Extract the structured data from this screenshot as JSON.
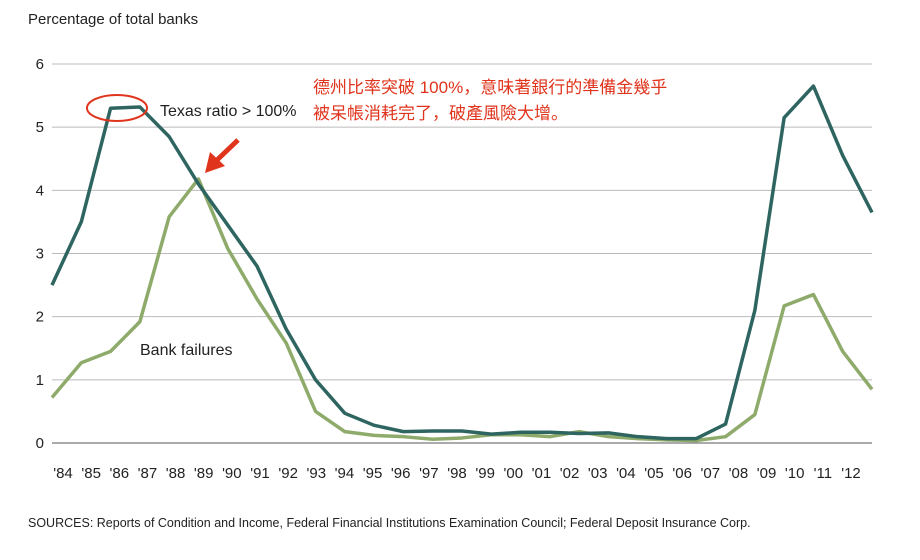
{
  "chart_data": {
    "type": "line",
    "title": "Percentage of total banks",
    "source": "SOURCES: Reports of Condition and Income, Federal Financial Institutions Examination Council; Federal Deposit Insurance Corp.",
    "annotations": [
      "德州比率突破 100%，意味著銀行的準備金幾乎",
      "被呆帳消耗完了，破產風險大增。"
    ],
    "categories": [
      "'84",
      "'85",
      "'86",
      "'87",
      "'88",
      "'89",
      "'90",
      "'91",
      "'92",
      "'93",
      "'94",
      "'95",
      "'96",
      "'97",
      "'98",
      "'99",
      "'00",
      "'01",
      "'02",
      "'03",
      "'04",
      "'05",
      "'06",
      "'07",
      "'08",
      "'09",
      "'10",
      "'11",
      "'12"
    ],
    "series": [
      {
        "name": "Texas ratio > 100%",
        "color": "#2f6560",
        "values": [
          2.5,
          3.5,
          5.3,
          5.32,
          4.85,
          4.1,
          3.45,
          2.8,
          1.8,
          1.0,
          0.47,
          0.28,
          0.18,
          0.19,
          0.19,
          0.14,
          0.17,
          0.17,
          0.15,
          0.16,
          0.1,
          0.07,
          0.07,
          0.3,
          2.1,
          5.15,
          5.65,
          4.55,
          3.65
        ]
      },
      {
        "name": "Bank failures",
        "color": "#8fab6b",
        "values": [
          0.72,
          1.27,
          1.45,
          1.92,
          3.58,
          4.18,
          3.08,
          2.28,
          1.58,
          0.5,
          0.18,
          0.12,
          0.1,
          0.06,
          0.08,
          0.13,
          0.13,
          0.1,
          0.18,
          0.1,
          0.07,
          0.05,
          0.04,
          0.1,
          0.45,
          2.17,
          2.35,
          1.45,
          0.85
        ]
      }
    ],
    "ylim": [
      0,
      6
    ],
    "yticks": [
      0,
      1,
      2,
      3,
      4,
      5,
      6
    ],
    "grid": true
  }
}
